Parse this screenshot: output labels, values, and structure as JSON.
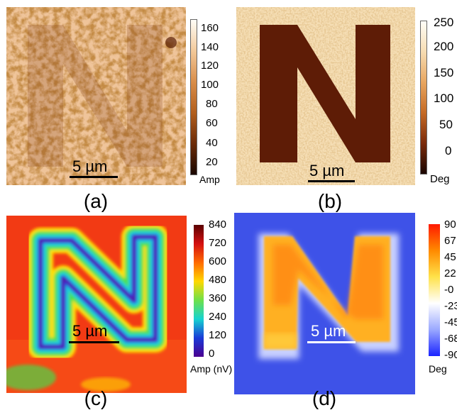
{
  "panels": {
    "a": {
      "label": "(a)",
      "scalebar": "5 µm",
      "colorbar": {
        "ticks": [
          "160",
          "140",
          "120",
          "100",
          "80",
          "60",
          "40",
          "20"
        ],
        "unit": "Amp",
        "colors": [
          "#fffef8",
          "#f2c99a",
          "#d98e4a",
          "#b25f1e",
          "#6b2b08",
          "#1a0700"
        ]
      }
    },
    "b": {
      "label": "(b)",
      "scalebar": "5 µm",
      "colorbar": {
        "ticks": [
          "250",
          "200",
          "150",
          "100",
          "50",
          "0"
        ],
        "unit": "Deg",
        "colors": [
          "#fffef8",
          "#f6dcb2",
          "#e8a660",
          "#c56a25",
          "#7a2a0a",
          "#1a0500"
        ]
      }
    },
    "c": {
      "label": "(c)",
      "scalebar": "5 µm",
      "colorbar": {
        "ticks": [
          "840",
          "720",
          "600",
          "480",
          "360",
          "240",
          "120",
          "0"
        ],
        "unit": "Amp (nV)",
        "colors": [
          "#5a0000",
          "#d41010",
          "#ff6a00",
          "#ffd800",
          "#6ee04a",
          "#15d3d0",
          "#1a3ad8",
          "#4a0090"
        ]
      }
    },
    "d": {
      "label": "(d)",
      "scalebar": "5 µm",
      "colorbar": {
        "ticks": [
          "90",
          "67",
          "45",
          "22",
          "-0",
          "-23",
          "-45",
          "-68",
          "-90"
        ],
        "unit": "Deg",
        "colors": [
          "#ff1a00",
          "#ff8a00",
          "#ffe24a",
          "#ffffff",
          "#9aa8ff",
          "#1a24ff"
        ]
      }
    }
  }
}
